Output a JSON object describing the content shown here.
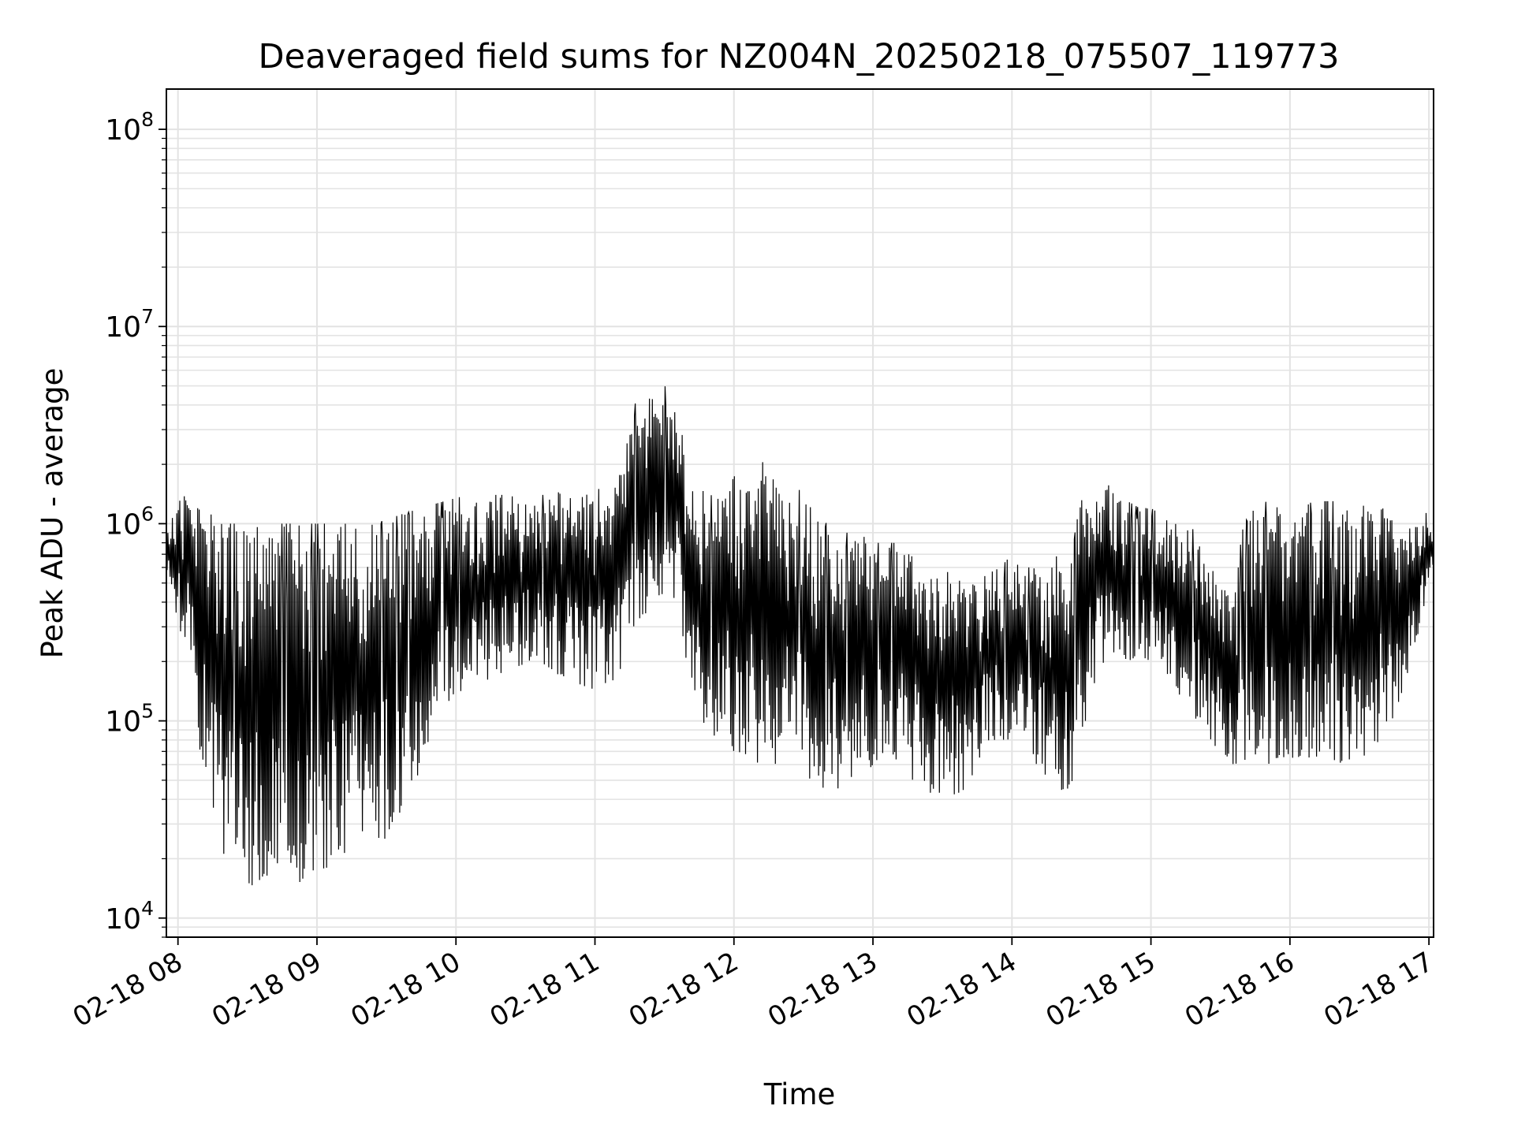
{
  "chart_data": {
    "type": "line",
    "title": "Deaveraged field sums for NZ004N_20250218_075507_119773",
    "xlabel": "Time",
    "ylabel": "Peak ADU - average",
    "yscale": "log",
    "ylim": [
      8000,
      160000000
    ],
    "xlim": [
      "02-18 07:55",
      "02-18 17:02"
    ],
    "grid": true,
    "line_color": "#000000",
    "grid_color": "#e3e3e3",
    "x_ticks": [
      "02-18 08",
      "02-18 09",
      "02-18 10",
      "02-18 11",
      "02-18 12",
      "02-18 13",
      "02-18 14",
      "02-18 15",
      "02-18 16",
      "02-18 17"
    ],
    "y_ticks": [
      {
        "value": 10000,
        "base": "10",
        "exp": "4"
      },
      {
        "value": 100000,
        "base": "10",
        "exp": "5"
      },
      {
        "value": 1000000,
        "base": "10",
        "exp": "6"
      },
      {
        "value": 10000000,
        "base": "10",
        "exp": "7"
      },
      {
        "value": 100000000,
        "base": "10",
        "exp": "8"
      }
    ],
    "series": [
      {
        "x": [
          "02-18 07:55",
          "02-18 08:00",
          "02-18 08:05",
          "02-18 08:10",
          "02-18 08:15",
          "02-18 08:20",
          "02-18 08:25",
          "02-18 08:30",
          "02-18 08:35",
          "02-18 08:40",
          "02-18 08:45",
          "02-18 08:50",
          "02-18 08:55",
          "02-18 09:00",
          "02-18 09:05",
          "02-18 09:10",
          "02-18 09:15",
          "02-18 09:20",
          "02-18 09:25",
          "02-18 09:30",
          "02-18 09:35",
          "02-18 09:40",
          "02-18 09:45",
          "02-18 09:50",
          "02-18 09:55",
          "02-18 10:00",
          "02-18 10:05",
          "02-18 10:10",
          "02-18 10:15",
          "02-18 10:20",
          "02-18 10:25",
          "02-18 10:30",
          "02-18 10:35",
          "02-18 10:40",
          "02-18 10:45",
          "02-18 10:50",
          "02-18 10:55",
          "02-18 11:00",
          "02-18 11:05",
          "02-18 11:10",
          "02-18 11:15",
          "02-18 11:20",
          "02-18 11:25",
          "02-18 11:30",
          "02-18 11:35",
          "02-18 11:40",
          "02-18 11:45",
          "02-18 11:50",
          "02-18 11:55",
          "02-18 12:00",
          "02-18 12:05",
          "02-18 12:10",
          "02-18 12:15",
          "02-18 12:20",
          "02-18 12:25",
          "02-18 12:30",
          "02-18 12:35",
          "02-18 12:40",
          "02-18 12:45",
          "02-18 12:50",
          "02-18 12:55",
          "02-18 13:00",
          "02-18 13:05",
          "02-18 13:10",
          "02-18 13:15",
          "02-18 13:20",
          "02-18 13:25",
          "02-18 13:30",
          "02-18 13:35",
          "02-18 13:40",
          "02-18 13:45",
          "02-18 13:50",
          "02-18 13:55",
          "02-18 14:00",
          "02-18 14:05",
          "02-18 14:10",
          "02-18 14:15",
          "02-18 14:20",
          "02-18 14:25",
          "02-18 14:30",
          "02-18 14:35",
          "02-18 14:40",
          "02-18 14:45",
          "02-18 14:50",
          "02-18 14:55",
          "02-18 15:00",
          "02-18 15:05",
          "02-18 15:10",
          "02-18 15:15",
          "02-18 15:20",
          "02-18 15:25",
          "02-18 15:30",
          "02-18 15:35",
          "02-18 15:40",
          "02-18 15:45",
          "02-18 15:50",
          "02-18 15:55",
          "02-18 16:00",
          "02-18 16:05",
          "02-18 16:10",
          "02-18 16:15",
          "02-18 16:20",
          "02-18 16:25",
          "02-18 16:30",
          "02-18 16:35",
          "02-18 16:40",
          "02-18 16:45",
          "02-18 16:50",
          "02-18 16:55",
          "02-18 17:00",
          "02-18 17:02"
        ],
        "upper": [
          900000,
          1300000,
          1600000,
          1200000,
          1100000,
          1000000,
          1000000,
          1000000,
          1000000,
          1000000,
          1000000,
          1000000,
          1000000,
          1000000,
          1000000,
          1000000,
          1000000,
          950000,
          1000000,
          1050000,
          1100000,
          1150000,
          1200000,
          1250000,
          1300000,
          1350000,
          1400000,
          1400000,
          1400000,
          1400000,
          1400000,
          1400000,
          1400000,
          1400000,
          1450000,
          1500000,
          1500000,
          1500000,
          1500000,
          1600000,
          3500000,
          4800000,
          5000000,
          5000000,
          4500000,
          2000000,
          1500000,
          1400000,
          1300000,
          1800000,
          1500000,
          2500000,
          1800000,
          1500000,
          1300000,
          1600000,
          1200000,
          1000000,
          900000,
          900000,
          900000,
          800000,
          800000,
          800000,
          700000,
          700000,
          600000,
          600000,
          600000,
          500000,
          500000,
          600000,
          600000,
          700000,
          600000,
          600000,
          600000,
          700000,
          600000,
          1500000,
          1700000,
          1700000,
          1500000,
          1300000,
          1200000,
          1200000,
          1100000,
          1000000,
          1000000,
          900000,
          700000,
          500000,
          400000,
          1000000,
          1200000,
          1300000,
          1200000,
          1200000,
          1200000,
          1300000,
          1300000,
          1300000,
          1200000,
          1200000,
          1300000,
          1300000,
          1300000,
          1000000,
          1000000,
          1200000,
          700000
        ],
        "lower": [
          600000,
          300000,
          200000,
          60000,
          25000,
          20000,
          17000,
          15000,
          14000,
          14000,
          14000,
          15000,
          15000,
          16000,
          18000,
          19000,
          20000,
          21000,
          22000,
          24000,
          28000,
          35000,
          50000,
          80000,
          100000,
          110000,
          120000,
          140000,
          160000,
          170000,
          180000,
          190000,
          200000,
          180000,
          170000,
          160000,
          150000,
          140000,
          150000,
          170000,
          230000,
          300000,
          400000,
          450000,
          350000,
          150000,
          90000,
          80000,
          80000,
          70000,
          60000,
          60000,
          60000,
          60000,
          60000,
          50000,
          45000,
          45000,
          45000,
          45000,
          50000,
          60000,
          70000,
          60000,
          50000,
          45000,
          40000,
          40000,
          40000,
          45000,
          60000,
          80000,
          80000,
          80000,
          70000,
          60000,
          50000,
          45000,
          40000,
          80000,
          150000,
          200000,
          200000,
          200000,
          200000,
          200000,
          180000,
          150000,
          120000,
          100000,
          80000,
          70000,
          60000,
          60000,
          60000,
          60000,
          60000,
          60000,
          60000,
          60000,
          60000,
          60000,
          60000,
          60000,
          70000,
          80000,
          100000,
          150000,
          250000,
          500000,
          600000
        ]
      }
    ]
  }
}
